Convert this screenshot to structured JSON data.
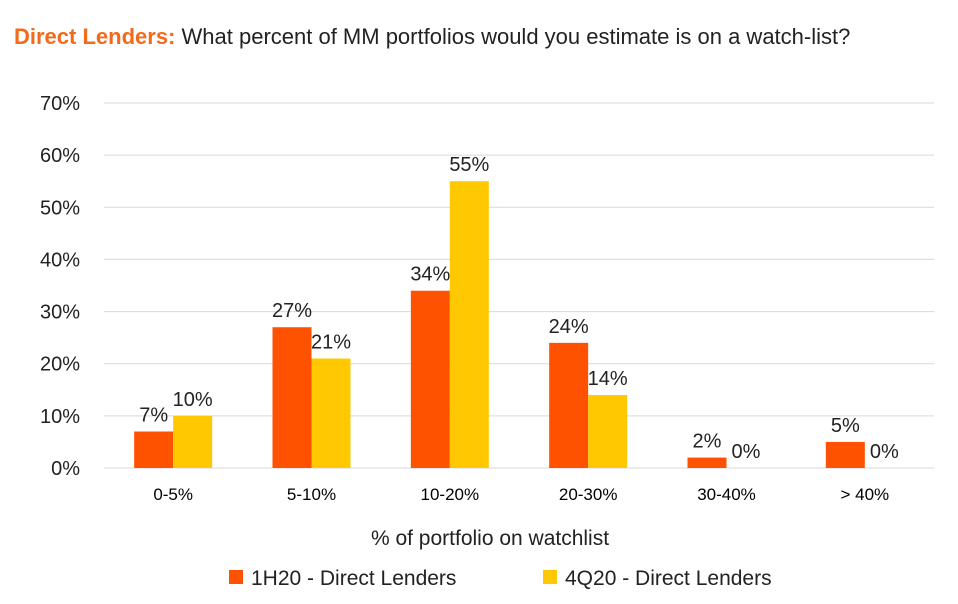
{
  "title": {
    "lead": "Direct Lenders:",
    "text": "What percent of MM portfolios would you estimate is on a watch-list?"
  },
  "chart_data": {
    "type": "bar",
    "categories": [
      "0-5%",
      "5-10%",
      "10-20%",
      "20-30%",
      "30-40%",
      "> 40%"
    ],
    "series": [
      {
        "name": "1H20 - Direct Lenders",
        "color": "#ff5200",
        "values": [
          7,
          27,
          34,
          24,
          2,
          5
        ],
        "labels": [
          "7%",
          "27%",
          "34%",
          "24%",
          "2%",
          "5%"
        ]
      },
      {
        "name": "4Q20 - Direct Lenders",
        "color": "#ffc800",
        "values": [
          10,
          21,
          55,
          14,
          0,
          0
        ],
        "labels": [
          "10%",
          "21%",
          "55%",
          "14%",
          "0%",
          "0%"
        ]
      }
    ],
    "xlabel": "% of portfolio on watchlist",
    "ylabel": "",
    "ylim": [
      0,
      70
    ],
    "yticks": [
      0,
      10,
      20,
      30,
      40,
      50,
      60,
      70
    ],
    "ytick_labels": [
      "0%",
      "10%",
      "20%",
      "30%",
      "40%",
      "50%",
      "60%",
      "70%"
    ],
    "grid": true,
    "legend": "bottom"
  }
}
